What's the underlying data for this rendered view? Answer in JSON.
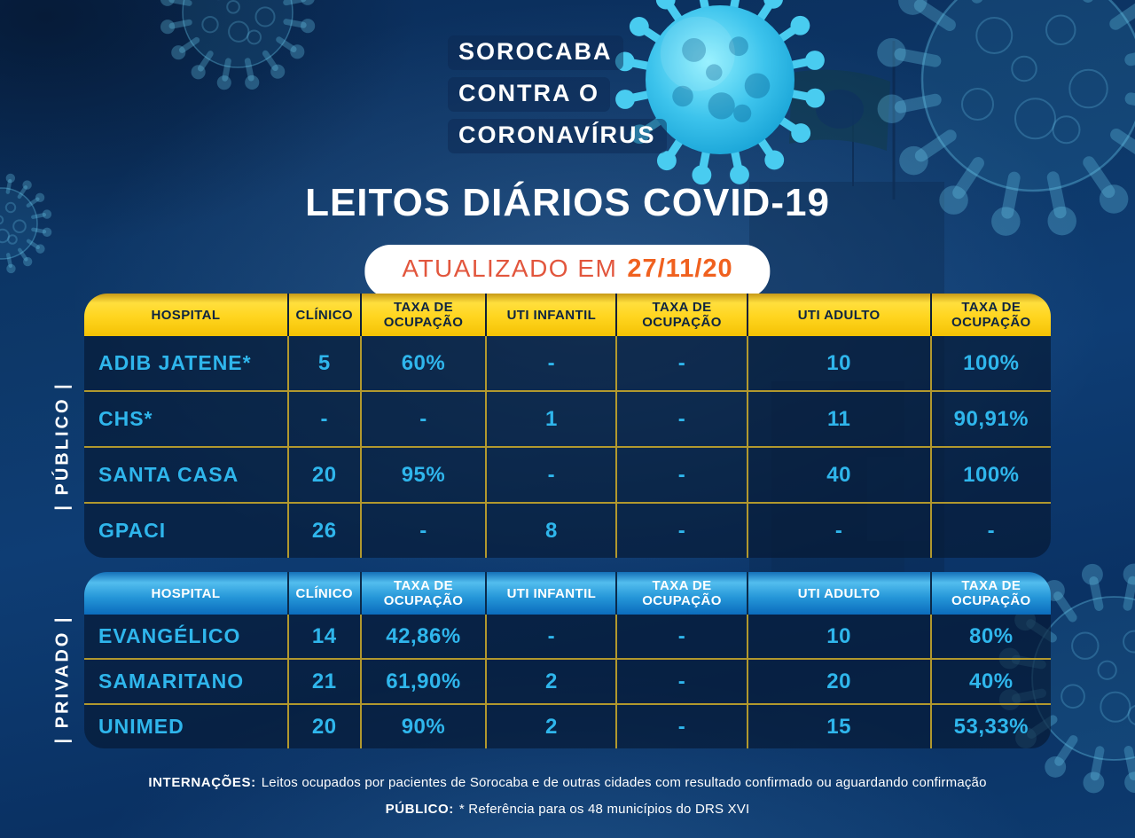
{
  "logo": {
    "line1": "SOROCABA",
    "line2": "CONTRA O",
    "line3": "CORONAVÍRUS"
  },
  "page_title": "LEITOS DIÁRIOS COVID-19",
  "updated_badge": {
    "label": "ATUALIZADO EM",
    "date": "27/11/20"
  },
  "chart_data": [
    {
      "type": "table",
      "group": "PÚBLICO",
      "group_label": "| PÚBLICO |",
      "theme": "yellow",
      "columns": [
        "HOSPITAL",
        "CLÍNICO",
        "TAXA DE OCUPAÇÃO",
        "UTI INFANTIL",
        "TAXA DE OCUPAÇÃO",
        "UTI ADULTO",
        "TAXA DE OCUPAÇÃO"
      ],
      "rows": [
        [
          "ADIB JATENE*",
          "5",
          "60%",
          "-",
          "-",
          "10",
          "100%"
        ],
        [
          "CHS*",
          "-",
          "-",
          "1",
          "-",
          "11",
          "90,91%"
        ],
        [
          "SANTA CASA",
          "20",
          "95%",
          "-",
          "-",
          "40",
          "100%"
        ],
        [
          "GPACI",
          "26",
          "-",
          "8",
          "-",
          "-",
          "-"
        ]
      ]
    },
    {
      "type": "table",
      "group": "PRIVADO",
      "group_label": "| PRIVADO |",
      "theme": "blue",
      "columns": [
        "HOSPITAL",
        "CLÍNICO",
        "TAXA DE OCUPAÇÃO",
        "UTI INFANTIL",
        "TAXA DE OCUPAÇÃO",
        "UTI ADULTO",
        "TAXA DE OCUPAÇÃO"
      ],
      "rows": [
        [
          "EVANGÉLICO",
          "14",
          "42,86%",
          "-",
          "-",
          "10",
          "80%"
        ],
        [
          "SAMARITANO",
          "21",
          "61,90%",
          "2",
          "-",
          "20",
          "40%"
        ],
        [
          "UNIMED",
          "20",
          "90%",
          "2",
          "-",
          "15",
          "53,33%"
        ]
      ]
    }
  ],
  "footnotes": [
    {
      "label": "INTERNAÇÕES:",
      "text": "Leitos ocupados por pacientes de Sorocaba e de outras cidades com resultado confirmado ou aguardando confirmação"
    },
    {
      "label": "PÚBLICO:",
      "text": "* Referência para os 48 municípios do DRS XVI"
    }
  ],
  "colors": {
    "background": "#0d3a6e",
    "accent_cyan_text": "#2fb6ec",
    "grid_gold": "#c4a52b",
    "header_yellow_top": "#ffdf3d",
    "header_yellow_bottom": "#f4c204",
    "header_yellow_text": "#0d2441",
    "header_blue_top": "#52bdee",
    "header_blue_bottom": "#0b6cbd",
    "badge_label_orange": "#e2563d",
    "badge_date_orange": "#f0611f",
    "virus_cyan": "#3cc3ec"
  }
}
